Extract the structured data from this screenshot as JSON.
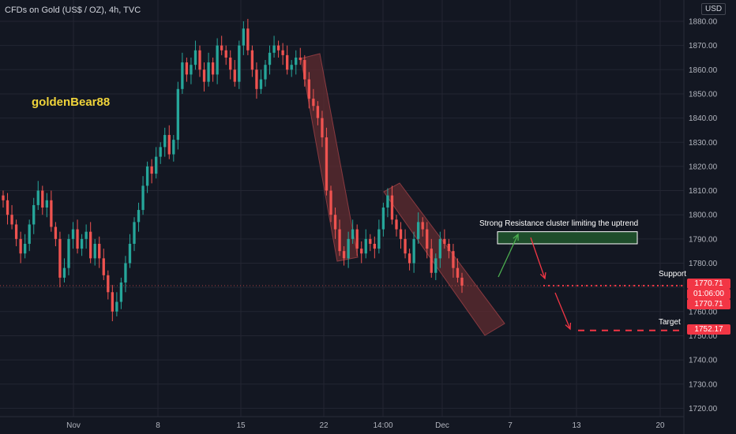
{
  "symbol_title": "CFDs on Gold (US$ / OZ), 4h, TVC",
  "watermark": "goldenBear88",
  "currency": "USD",
  "price_tags": {
    "last_price": "1770.71",
    "countdown": "01:06:00",
    "last_price_2": "1770.71",
    "target_price": "1752.17"
  },
  "annotations": {
    "resistance": "Strong Resistance cluster limiting the uptrend",
    "support": "Support",
    "target": "Target"
  },
  "colors": {
    "background": "#131722",
    "grid": "#232632",
    "bull": "#26a69a",
    "bear": "#ef5350",
    "tag_red": "#f23645",
    "resistance_box": "#1e4d2b",
    "channel_fill": "#5b2a2f",
    "green_arrow": "#4caf50",
    "red_arrow": "#f23645",
    "watermark": "#f0d43a"
  },
  "chart_data": {
    "type": "candlestick",
    "interval": "4h",
    "y_axis_ticks": [
      "1880.00",
      "1870.00",
      "1860.00",
      "1850.00",
      "1840.00",
      "1830.00",
      "1820.00",
      "1810.00",
      "1800.00",
      "1790.00",
      "1780.00",
      "1770.00",
      "1760.00",
      "1750.00",
      "1740.00",
      "1730.00",
      "1720.00"
    ],
    "ylim": [
      1716,
      1885
    ],
    "x_axis_ticks": [
      "Nov",
      "8",
      "15",
      "22",
      "14:00",
      "Dec",
      "7",
      "13",
      "20"
    ],
    "grid": true,
    "price_path": [
      1806,
      1800,
      1796,
      1790,
      1784,
      1788,
      1796,
      1804,
      1810,
      1803,
      1806,
      1795,
      1790,
      1774,
      1778,
      1790,
      1794,
      1786,
      1790,
      1793,
      1782,
      1788,
      1782,
      1775,
      1768,
      1760,
      1764,
      1772,
      1780,
      1788,
      1797,
      1802,
      1812,
      1820,
      1817,
      1824,
      1828,
      1833,
      1825,
      1831,
      1852,
      1863,
      1858,
      1862,
      1868,
      1860,
      1855,
      1863,
      1858,
      1870,
      1868,
      1865,
      1860,
      1855,
      1870,
      1877,
      1868,
      1860,
      1852,
      1856,
      1862,
      1867,
      1870,
      1868,
      1866,
      1860,
      1862,
      1865,
      1864,
      1856,
      1848,
      1845,
      1840,
      1832,
      1810,
      1800,
      1794,
      1785,
      1782,
      1790,
      1794,
      1786,
      1784,
      1790,
      1788,
      1786,
      1794,
      1803,
      1808,
      1798,
      1794,
      1790,
      1784,
      1780,
      1790,
      1797,
      1794,
      1786,
      1776,
      1782,
      1790,
      1788,
      1785,
      1778,
      1774,
      1770.71
    ],
    "resistance_zone": [
      1788,
      1793
    ],
    "support_level": 1770.71,
    "target_level": 1752.17
  }
}
